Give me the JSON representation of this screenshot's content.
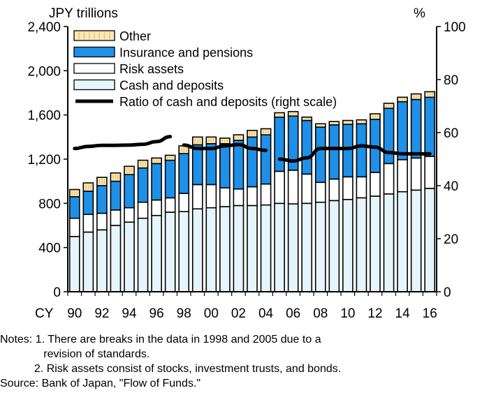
{
  "chart_data": {
    "type": "bar",
    "stacked": true,
    "left_axis_title": "JPY trillions",
    "right_axis_title": "%",
    "x_prefix_label": "CY",
    "categories": [
      "90",
      "91",
      "92",
      "93",
      "94",
      "95",
      "96",
      "97",
      "98",
      "99",
      "00",
      "01",
      "02",
      "03",
      "04",
      "05",
      "06",
      "07",
      "08",
      "09",
      "10",
      "11",
      "12",
      "13",
      "14",
      "15",
      "16"
    ],
    "x_tick_labels": [
      "90",
      "92",
      "94",
      "96",
      "98",
      "00",
      "02",
      "04",
      "06",
      "08",
      "10",
      "12",
      "14",
      "16"
    ],
    "ylim": [
      0,
      2400
    ],
    "y_ticks": [
      "0",
      "400",
      "800",
      "1,200",
      "1,600",
      "2,000",
      "2,400"
    ],
    "y2lim": [
      0,
      100
    ],
    "y2_ticks": [
      "0",
      "20",
      "40",
      "60",
      "80",
      "100"
    ],
    "legend_position": "top-left",
    "series": [
      {
        "name": "Cash and deposits",
        "color": "#e4f6fb",
        "values": [
          500,
          540,
          560,
          600,
          630,
          665,
          690,
          720,
          725,
          750,
          760,
          770,
          780,
          780,
          785,
          800,
          795,
          800,
          810,
          825,
          835,
          850,
          865,
          885,
          905,
          920,
          935
        ]
      },
      {
        "name": "Risk assets",
        "color": "#ffffff",
        "values": [
          165,
          160,
          150,
          140,
          130,
          145,
          140,
          130,
          165,
          220,
          210,
          170,
          150,
          170,
          190,
          290,
          305,
          265,
          180,
          195,
          205,
          190,
          215,
          275,
          290,
          290,
          290
        ]
      },
      {
        "name": "Insurance and pensions",
        "color": "#1e90e8",
        "values": [
          195,
          210,
          250,
          260,
          300,
          310,
          330,
          340,
          360,
          360,
          370,
          400,
          440,
          450,
          445,
          490,
          490,
          485,
          500,
          490,
          475,
          480,
          480,
          500,
          525,
          530,
          535
        ]
      },
      {
        "name": "Other",
        "color": "#fde9b8",
        "values": [
          65,
          75,
          75,
          75,
          75,
          70,
          50,
          45,
          70,
          70,
          60,
          50,
          50,
          60,
          55,
          40,
          40,
          30,
          30,
          30,
          35,
          35,
          50,
          45,
          40,
          50,
          50
        ]
      }
    ],
    "line": {
      "name": "Ratio of cash and deposits (right scale)",
      "axis": "right",
      "segments": [
        {
          "x": [
            "90",
            "91",
            "92",
            "93",
            "94",
            "95",
            "96",
            "97"
          ],
          "values": [
            54,
            54.8,
            55.2,
            55.2,
            55.3,
            55.6,
            56.6,
            58.5
          ]
        },
        {
          "x": [
            "98",
            "99",
            "00",
            "01",
            "02",
            "03",
            "04"
          ],
          "values": [
            55.3,
            54,
            54,
            55,
            55.5,
            54,
            53.3
          ]
        },
        {
          "x": [
            "05",
            "06",
            "07",
            "08",
            "09",
            "10",
            "11",
            "12",
            "13",
            "14",
            "15",
            "16"
          ],
          "values": [
            50,
            49.3,
            50.5,
            54,
            54,
            54,
            55,
            54.5,
            52.5,
            52,
            52,
            52
          ]
        }
      ]
    }
  },
  "notes": [
    "Notes: 1. There are breaks in the data in 1998 and 2005 due to a",
    "              revision of standards.",
    "           2. Risk assets consist of stocks, investment trusts, and bonds.",
    "Source: Bank of Japan, \"Flow of Funds.\""
  ]
}
